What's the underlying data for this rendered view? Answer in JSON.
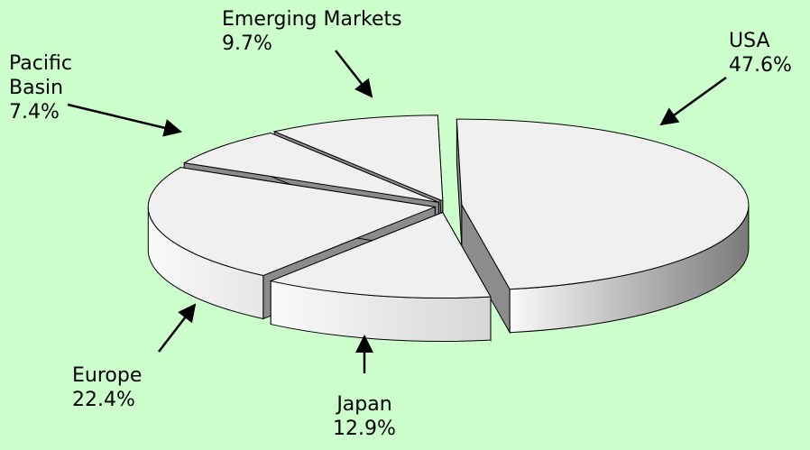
{
  "chart_data": {
    "type": "pie",
    "style": "3d-exploded",
    "title": "",
    "slices": [
      {
        "name": "USA",
        "value": 47.6,
        "label": "47.6%",
        "color": "#f0f0f0",
        "side_color": "#7a7a7a"
      },
      {
        "name": "Japan",
        "value": 12.9,
        "label": "12.9%",
        "color": "#f0f0f0",
        "side_color": "#d6d6d6"
      },
      {
        "name": "Europe",
        "value": 22.4,
        "label": "22.4%",
        "color": "#f0f0f0",
        "side_color": "#e6e6e6"
      },
      {
        "name": "Pacific\nBasin",
        "value": 7.4,
        "label": "7.4%",
        "color": "#f0f0f0",
        "side_color": "#e0e0e0"
      },
      {
        "name": "Emerging Markets",
        "value": 9.7,
        "label": "9.7%",
        "color": "#f0f0f0",
        "side_color": "#e0e0e0"
      }
    ],
    "legend": "none",
    "background": "#ccffcc"
  }
}
